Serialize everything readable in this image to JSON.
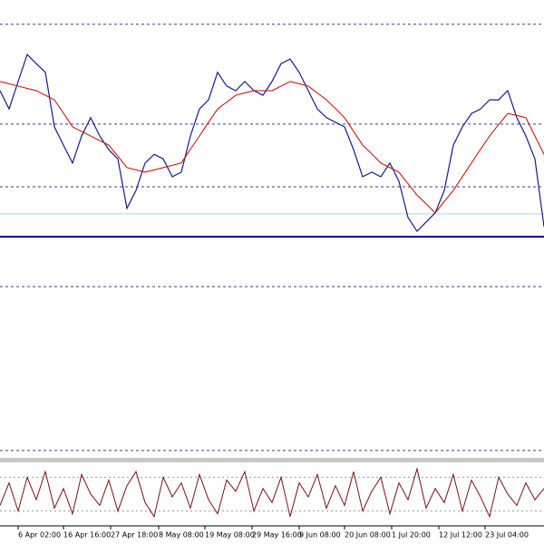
{
  "chart_data": {
    "type": "line",
    "ylim": [
      0,
      100
    ],
    "levels": [
      94.7,
      72.9,
      59.2,
      37.4,
      1.6
    ],
    "support": 48.3,
    "reference": 53.3,
    "series": [
      {
        "color": "#1a1a8a",
        "values": [
          80.2,
          76.2,
          82.2,
          88.1,
          86.1,
          84.2,
          72.3,
          68.3,
          64.4,
          70.3,
          74.3,
          70.3,
          67.3,
          65.3,
          54.5,
          58.4,
          64.4,
          66.3,
          65.3,
          61.4,
          62.4,
          70.3,
          76.2,
          78.2,
          84.2,
          81.2,
          80.2,
          82.2,
          80.2,
          79.2,
          82.2,
          86.1,
          87.1,
          84.2,
          80.2,
          76.2,
          74.3,
          73.3,
          72.3,
          67.3,
          61.4,
          62.4,
          61.4,
          64.4,
          60.4,
          52.5,
          49.5,
          51.5,
          53.5,
          58.4,
          68.3,
          72.3,
          75.2,
          76.2,
          78.2,
          78.2,
          80.2,
          74.3,
          70.3,
          65.3,
          50.5
        ]
      },
      {
        "color": "#cc0000",
        "values": [
          82.2,
          81.7,
          81.2,
          80.7,
          80.2,
          79.2,
          78.2,
          75.3,
          72.3,
          71.3,
          70.3,
          69.3,
          68.3,
          65.9,
          63.4,
          62.9,
          62.4,
          62.9,
          63.4,
          63.9,
          64.4,
          67.4,
          70.3,
          73.3,
          76.2,
          77.7,
          79.2,
          79.7,
          80.2,
          80.2,
          80.2,
          81.2,
          82.2,
          81.7,
          81.2,
          79.7,
          78.2,
          76.3,
          74.3,
          71.3,
          68.3,
          66.4,
          64.4,
          63.4,
          62.4,
          59.9,
          57.4,
          55.5,
          53.5,
          56.0,
          58.4,
          61.4,
          64.4,
          67.4,
          70.3,
          72.8,
          75.2,
          74.8,
          74.3,
          70.3,
          66.3
        ]
      }
    ],
    "xticks": [
      {
        "value": 2,
        "label": "6 Apr 02:00"
      },
      {
        "value": 7,
        "label": "16 Apr 16:00"
      },
      {
        "value": 12.2,
        "label": "27 Apr 18:00"
      },
      {
        "value": 17.5,
        "label": "8 May 08:00"
      },
      {
        "value": 22.6,
        "label": "19 May 08:00"
      },
      {
        "value": 27.8,
        "label": "29 May 16:00"
      },
      {
        "value": 33,
        "label": "9 Jun 08:00"
      },
      {
        "value": 38,
        "label": "20 Jun 08:00"
      },
      {
        "value": 43.2,
        "label": "1 Jul 20:00"
      },
      {
        "value": 48.4,
        "label": "12 Jul 12:00"
      },
      {
        "value": 53.5,
        "label": "23 Jul 04:00"
      }
    ],
    "oscillator": {
      "ylim": [
        0,
        100
      ],
      "levels": [
        20,
        80
      ],
      "color": "#7a1010",
      "values": [
        30,
        70,
        20,
        80,
        40,
        90,
        25,
        60,
        15,
        85,
        50,
        30,
        75,
        20,
        65,
        90,
        35,
        10,
        80,
        45,
        70,
        25,
        85,
        40,
        15,
        75,
        55,
        90,
        20,
        60,
        35,
        80,
        10,
        70,
        45,
        85,
        25,
        65,
        30,
        90,
        20,
        55,
        80,
        15,
        70,
        40,
        95,
        25,
        60,
        35,
        85,
        20,
        75,
        45,
        10,
        80,
        50,
        30,
        70,
        40,
        60
      ]
    }
  }
}
